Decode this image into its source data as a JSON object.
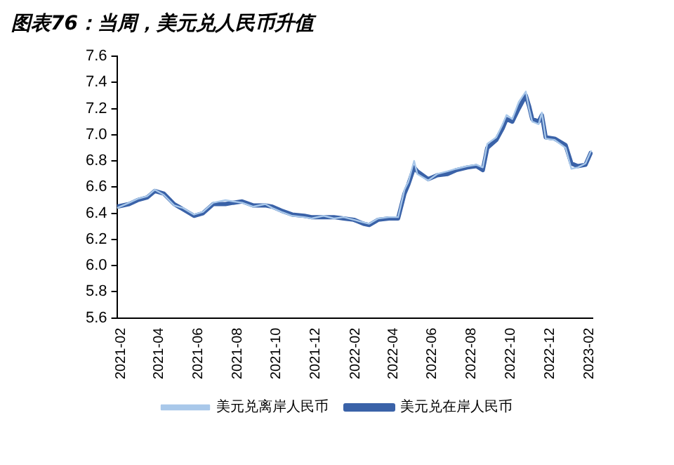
{
  "chart_data": {
    "type": "line",
    "title": "图表76：当周，美元兑人民币升值",
    "xlim": [
      "2021-02-01",
      "2023-02-12"
    ],
    "xticks": [
      "2021-02",
      "2021-04",
      "2021-06",
      "2021-08",
      "2021-10",
      "2021-12",
      "2022-02",
      "2022-04",
      "2022-06",
      "2022-08",
      "2022-10",
      "2022-12",
      "2023-02"
    ],
    "ylim": [
      5.6,
      7.6
    ],
    "yticks": [
      5.6,
      5.8,
      {
        "value": 6,
        "label": "6.0"
      },
      6.2,
      6.4,
      6.6,
      6.8,
      {
        "value": 7,
        "label": "7.0"
      },
      7.2,
      7.4,
      7.6
    ],
    "x": [
      "2021-02-01",
      "2021-02-20",
      "2021-03-05",
      "2021-03-20",
      "2021-04-01",
      "2021-04-15",
      "2021-05-01",
      "2021-05-15",
      "2021-06-01",
      "2021-06-15",
      "2021-07-01",
      "2021-07-20",
      "2021-08-01",
      "2021-08-15",
      "2021-09-01",
      "2021-09-20",
      "2021-10-01",
      "2021-10-15",
      "2021-11-01",
      "2021-11-20",
      "2021-12-01",
      "2021-12-20",
      "2022-01-05",
      "2022-01-20",
      "2022-02-05",
      "2022-02-20",
      "2022-03-01",
      "2022-03-15",
      "2022-04-01",
      "2022-04-15",
      "2022-04-25",
      "2022-05-01",
      "2022-05-10",
      "2022-05-15",
      "2022-06-01",
      "2022-06-15",
      "2022-07-01",
      "2022-07-15",
      "2022-08-01",
      "2022-08-15",
      "2022-08-25",
      "2022-09-01",
      "2022-09-15",
      "2022-09-25",
      "2022-10-01",
      "2022-10-10",
      "2022-10-20",
      "2022-10-31",
      "2022-11-05",
      "2022-11-10",
      "2022-11-20",
      "2022-11-25",
      "2022-12-01",
      "2022-12-15",
      "2023-01-01",
      "2023-01-10",
      "2023-01-20",
      "2023-02-01",
      "2023-02-10"
    ],
    "series": [
      {
        "name": "美元兑在岸人民币",
        "color": "#3a62a8",
        "values": [
          6.45,
          6.47,
          6.5,
          6.52,
          6.57,
          6.55,
          6.47,
          6.43,
          6.38,
          6.4,
          6.47,
          6.47,
          6.48,
          6.49,
          6.46,
          6.46,
          6.45,
          6.42,
          6.39,
          6.38,
          6.37,
          6.37,
          6.37,
          6.36,
          6.35,
          6.32,
          6.31,
          6.35,
          6.36,
          6.36,
          6.55,
          6.62,
          6.75,
          6.72,
          6.66,
          6.69,
          6.7,
          6.73,
          6.75,
          6.76,
          6.73,
          6.9,
          6.96,
          7.05,
          7.12,
          7.1,
          7.2,
          7.3,
          7.22,
          7.12,
          7.1,
          7.15,
          6.98,
          6.97,
          6.92,
          6.78,
          6.76,
          6.77,
          6.87
        ]
      },
      {
        "name": "美元兑离岸人民币",
        "color": "#a9c8ea",
        "values": [
          6.44,
          6.48,
          6.51,
          6.53,
          6.58,
          6.54,
          6.46,
          6.44,
          6.39,
          6.41,
          6.48,
          6.5,
          6.49,
          6.48,
          6.45,
          6.47,
          6.44,
          6.41,
          6.38,
          6.37,
          6.36,
          6.38,
          6.36,
          6.37,
          6.35,
          6.33,
          6.32,
          6.36,
          6.37,
          6.37,
          6.58,
          6.64,
          6.8,
          6.7,
          6.65,
          6.7,
          6.72,
          6.74,
          6.76,
          6.77,
          6.75,
          6.93,
          6.98,
          7.08,
          7.15,
          7.12,
          7.25,
          7.33,
          7.2,
          7.1,
          7.08,
          7.17,
          6.97,
          6.96,
          6.9,
          6.74,
          6.75,
          6.78,
          6.88
        ]
      }
    ],
    "legend": "bottom",
    "grid": false,
    "marker": "none",
    "line_style": "solid"
  }
}
